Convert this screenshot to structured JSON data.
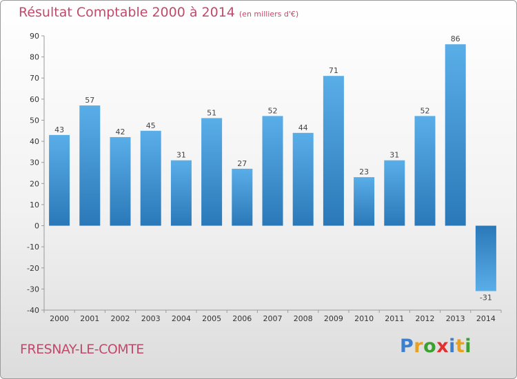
{
  "header": {
    "title": "Résultat Comptable 2000 à 2014",
    "unit": "(en milliers d'€)"
  },
  "footer": {
    "commune": "FRESNAY-LE-COMTE",
    "logo_letters": [
      {
        "char": "P",
        "color": "#3a7fd0"
      },
      {
        "char": "r",
        "color": "#e8a020"
      },
      {
        "char": "o",
        "color": "#3aa030"
      },
      {
        "char": "x",
        "color": "#e03030"
      },
      {
        "char": "i",
        "color": "#3a7fd0"
      },
      {
        "char": "t",
        "color": "#e8a020"
      },
      {
        "char": "i",
        "color": "#3aa030"
      }
    ]
  },
  "colors": {
    "bar_top": "#5aaee8",
    "bar_bottom": "#2a78b8",
    "text_accent": "#c04a6a"
  },
  "chart_data": {
    "type": "bar",
    "title": "Résultat Comptable 2000 à 2014",
    "subtitle": "(en milliers d'€)",
    "xlabel": "",
    "ylabel": "",
    "categories": [
      "2000",
      "2001",
      "2002",
      "2003",
      "2004",
      "2005",
      "2006",
      "2007",
      "2008",
      "2009",
      "2010",
      "2011",
      "2012",
      "2013",
      "2014"
    ],
    "values": [
      43,
      57,
      42,
      45,
      31,
      51,
      27,
      52,
      44,
      71,
      23,
      31,
      52,
      86,
      -31
    ],
    "ylim": [
      -40,
      90
    ],
    "yticks": [
      -40,
      -30,
      -20,
      -10,
      0,
      10,
      20,
      30,
      40,
      50,
      60,
      70,
      80,
      90
    ],
    "grid": false,
    "legend": "none"
  }
}
